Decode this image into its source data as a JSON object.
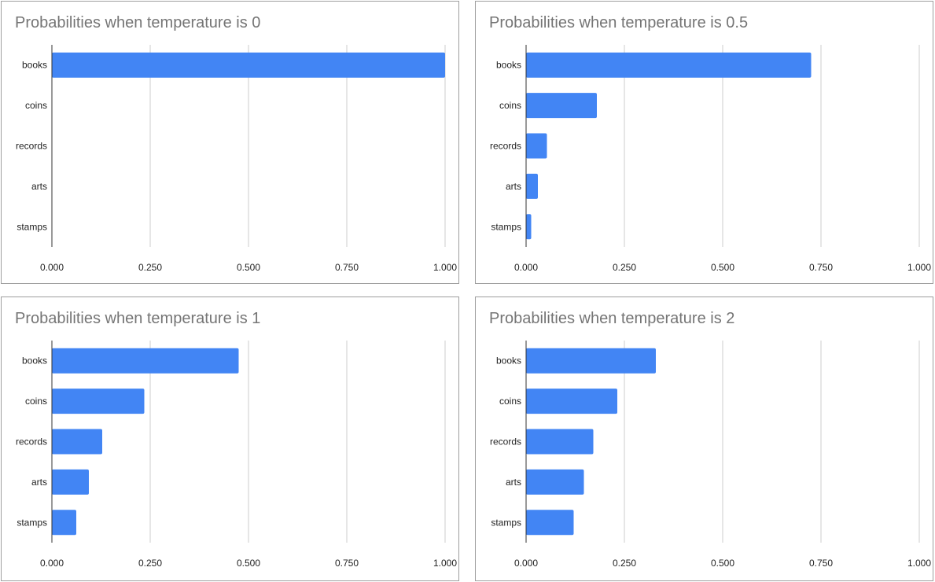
{
  "chart_data": [
    {
      "type": "bar",
      "orientation": "horizontal",
      "title": "Probabilities when temperature is 0",
      "categories": [
        "books",
        "coins",
        "records",
        "arts",
        "stamps"
      ],
      "values": [
        1.0,
        0.0,
        0.0,
        0.0,
        0.0
      ],
      "xlim": [
        0,
        1
      ],
      "xticks": [
        "0.000",
        "0.250",
        "0.500",
        "0.750",
        "1.000"
      ],
      "grid": true,
      "bar_color": "#4285f4"
    },
    {
      "type": "bar",
      "orientation": "horizontal",
      "title": "Probabilities when temperature is 0.5",
      "categories": [
        "books",
        "coins",
        "records",
        "arts",
        "stamps"
      ],
      "values": [
        0.725,
        0.18,
        0.053,
        0.03,
        0.013
      ],
      "xlim": [
        0,
        1
      ],
      "xticks": [
        "0.000",
        "0.250",
        "0.500",
        "0.750",
        "1.000"
      ],
      "grid": true,
      "bar_color": "#4285f4"
    },
    {
      "type": "bar",
      "orientation": "horizontal",
      "title": "Probabilities when temperature is 1",
      "categories": [
        "books",
        "coins",
        "records",
        "arts",
        "stamps"
      ],
      "values": [
        0.475,
        0.235,
        0.128,
        0.094,
        0.062
      ],
      "xlim": [
        0,
        1
      ],
      "xticks": [
        "0.000",
        "0.250",
        "0.500",
        "0.750",
        "1.000"
      ],
      "grid": true,
      "bar_color": "#4285f4"
    },
    {
      "type": "bar",
      "orientation": "horizontal",
      "title": "Probabilities when temperature is 2",
      "categories": [
        "books",
        "coins",
        "records",
        "arts",
        "stamps"
      ],
      "values": [
        0.33,
        0.232,
        0.171,
        0.147,
        0.121
      ],
      "xlim": [
        0,
        1
      ],
      "xticks": [
        "0.000",
        "0.250",
        "0.500",
        "0.750",
        "1.000"
      ],
      "grid": true,
      "bar_color": "#4285f4"
    }
  ]
}
